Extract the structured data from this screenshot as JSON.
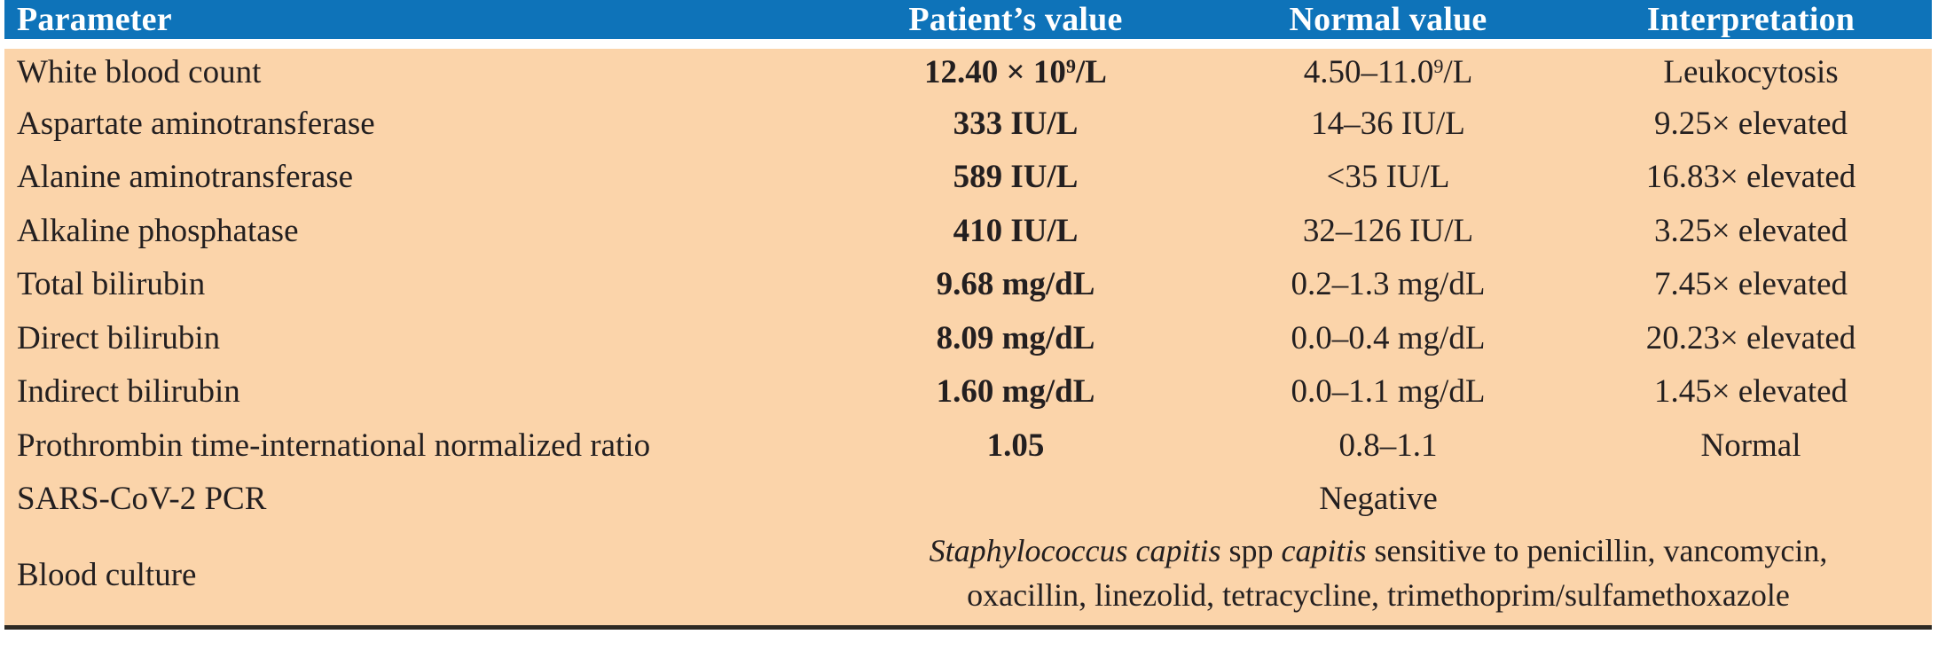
{
  "table": {
    "colors": {
      "header_bg": "#0e73b9",
      "header_text": "#ffffff",
      "body_bg": "#fbd4aa",
      "text": "#231f20",
      "bottom_border": "#2e2a24"
    },
    "columns": {
      "parameter": "Parameter",
      "patient_value": "Patient’s value",
      "normal_value": "Normal value",
      "interpretation": "Interpretation"
    },
    "rows": [
      {
        "parameter": "White blood count",
        "value_pre": "12.40 × 10",
        "value_sup": "9",
        "value_post": "/L",
        "normal_pre": "4.50–11.0",
        "normal_sup": "9",
        "normal_post": "/L",
        "interpretation": "Leukocytosis"
      },
      {
        "parameter": "Aspartate aminotransferase",
        "value": "333 IU/L",
        "normal": "14–36 IU/L",
        "interpretation": "9.25× elevated"
      },
      {
        "parameter": "Alanine aminotransferase",
        "value": "589 IU/L",
        "normal": "<35 IU/L",
        "interpretation": "16.83× elevated"
      },
      {
        "parameter": "Alkaline phosphatase",
        "value": "410 IU/L",
        "normal": "32–126 IU/L",
        "interpretation": "3.25× elevated"
      },
      {
        "parameter": "Total bilirubin",
        "value": "9.68 mg/dL",
        "normal": "0.2–1.3 mg/dL",
        "interpretation": "7.45× elevated"
      },
      {
        "parameter": "Direct bilirubin",
        "value": "8.09 mg/dL",
        "normal": "0.0–0.4 mg/dL",
        "interpretation": "20.23× elevated"
      },
      {
        "parameter": "Indirect bilirubin",
        "value": "1.60 mg/dL",
        "normal": "0.0–1.1 mg/dL",
        "interpretation": "1.45× elevated"
      },
      {
        "parameter": "Prothrombin time-international normalized ratio",
        "value": "1.05",
        "normal": "0.8–1.1",
        "interpretation": "Normal"
      },
      {
        "parameter": "SARS-CoV-2 PCR",
        "result": "Negative"
      },
      {
        "parameter": "Blood culture",
        "result_parts": {
          "italic1": "Staphylococcus capitis",
          "plain1": " spp ",
          "italic2": "capitis",
          "plain2": " sensitive to penicillin, vancomycin,",
          "line2": "oxacillin, linezolid, tetracycline, trimethoprim/sulfamethoxazole"
        }
      }
    ]
  }
}
